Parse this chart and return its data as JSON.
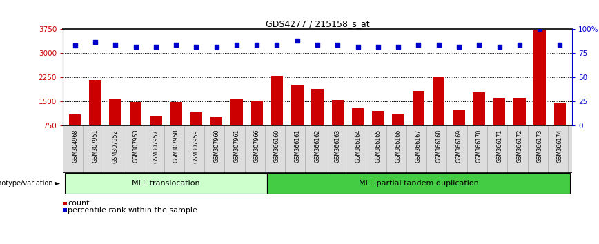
{
  "title": "GDS4277 / 215158_s_at",
  "categories": [
    "GSM304968",
    "GSM307951",
    "GSM307952",
    "GSM307953",
    "GSM307957",
    "GSM307958",
    "GSM307959",
    "GSM307960",
    "GSM307961",
    "GSM307966",
    "GSM366160",
    "GSM366161",
    "GSM366162",
    "GSM366163",
    "GSM366164",
    "GSM366165",
    "GSM366166",
    "GSM366167",
    "GSM366168",
    "GSM366169",
    "GSM366170",
    "GSM366171",
    "GSM366172",
    "GSM366173",
    "GSM366174"
  ],
  "bar_values": [
    1100,
    2180,
    1580,
    1480,
    1050,
    1490,
    1160,
    1020,
    1580,
    1520,
    2300,
    2020,
    1900,
    1560,
    1300,
    1200,
    1130,
    1820,
    2250,
    1220,
    1780,
    1620,
    1620,
    3710,
    1460
  ],
  "dot_values": [
    83,
    87,
    84,
    82,
    82,
    84,
    82,
    82,
    84,
    84,
    84,
    88,
    84,
    84,
    82,
    82,
    82,
    84,
    84,
    82,
    84,
    82,
    84,
    100,
    84
  ],
  "bar_color": "#cc0000",
  "dot_color": "#0000cc",
  "group1_label": "MLL translocation",
  "group2_label": "MLL partial tandem duplication",
  "group1_count": 10,
  "group2_count": 15,
  "group1_color": "#ccffcc",
  "group2_color": "#44cc44",
  "genotype_label": "genotype/variation",
  "ylim_left": [
    750,
    3750
  ],
  "ylim_right": [
    0,
    100
  ],
  "yticks_left": [
    750,
    1500,
    2250,
    3000,
    3750
  ],
  "yticks_right": [
    0,
    25,
    50,
    75,
    100
  ],
  "ytick_right_labels": [
    "0",
    "25",
    "50",
    "75",
    "100%"
  ],
  "grid_values": [
    1500,
    2250,
    3000
  ],
  "legend_count_label": "count",
  "legend_pct_label": "percentile rank within the sample",
  "background_color": "#ffffff",
  "plot_bg_color": "#ffffff",
  "xticklabel_bg": "#dddddd"
}
